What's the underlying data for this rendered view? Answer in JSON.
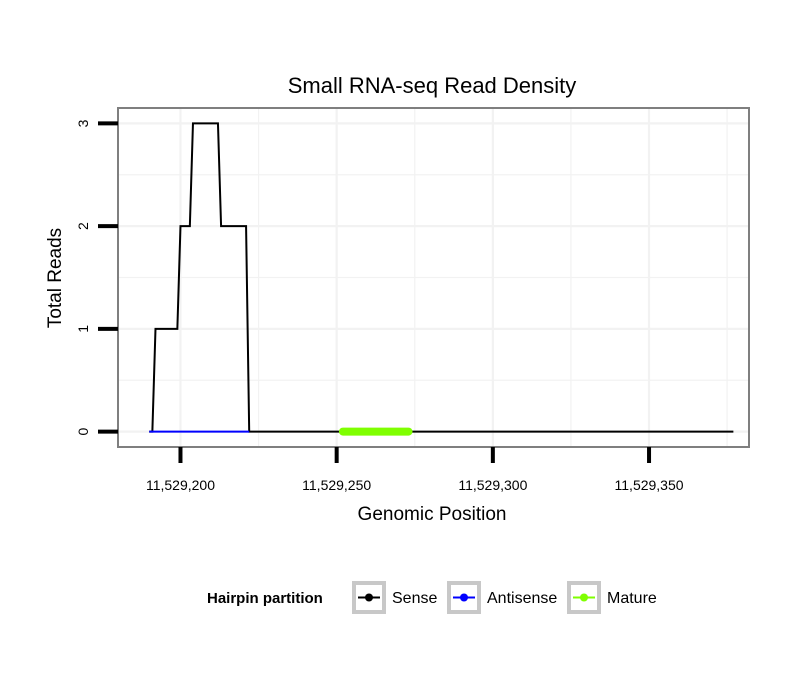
{
  "chart_data": {
    "type": "line",
    "title": "Small RNA-seq Read Density",
    "xlabel": "Genomic Position",
    "ylabel": "Total Reads",
    "xlim": [
      11529180,
      11529382
    ],
    "ylim": [
      -0.15,
      3.15
    ],
    "x_ticks": [
      11529200,
      11529250,
      11529300,
      11529350
    ],
    "x_tick_labels": [
      "11,529,200",
      "11,529,250",
      "11,529,300",
      "11,529,350"
    ],
    "y_ticks": [
      0,
      1,
      2,
      3
    ],
    "y_tick_labels": [
      "0",
      "1",
      "2",
      "3"
    ],
    "grid": true,
    "legend": {
      "title": "Hairpin partition",
      "position": "bottom",
      "entries": [
        "Sense",
        "Antisense",
        "Mature"
      ]
    },
    "series": [
      {
        "name": "Sense",
        "color": "#000000",
        "x": [
          11529190,
          11529191,
          11529192,
          11529199,
          11529200,
          11529203,
          11529204,
          11529208,
          11529212,
          11529213,
          11529221,
          11529222,
          11529377
        ],
        "y": [
          0,
          0,
          1,
          1,
          2,
          2,
          3,
          3,
          3,
          2,
          2,
          0,
          0
        ]
      },
      {
        "name": "Antisense",
        "color": "#0000ff",
        "x": [
          11529190,
          11529222
        ],
        "y": [
          0,
          0
        ]
      },
      {
        "name": "Mature",
        "color": "#7fff00",
        "x": [
          11529252,
          11529273
        ],
        "y": [
          0,
          0
        ]
      }
    ]
  }
}
